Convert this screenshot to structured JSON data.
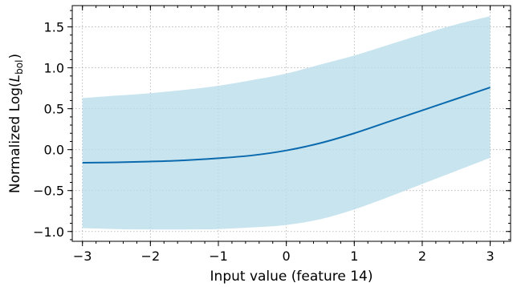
{
  "chart_data": {
    "type": "line",
    "xlabel": "Input value (feature 14)",
    "ylabel_prefix": "Normalized Log(",
    "ylabel_symbol": "L",
    "ylabel_subscript": "bol",
    "ylabel_suffix": ")",
    "xlim": [
      -3.15,
      3.3
    ],
    "ylim": [
      -1.12,
      1.76
    ],
    "x_ticks": [
      -3,
      -2,
      -1,
      0,
      1,
      2,
      3
    ],
    "x_tick_labels": [
      "−3",
      "−2",
      "−1",
      "0",
      "1",
      "2",
      "3"
    ],
    "y_ticks": [
      -1.0,
      -0.5,
      0.0,
      0.5,
      1.0,
      1.5
    ],
    "y_tick_labels": [
      "−1.0",
      "−0.5",
      "0.0",
      "0.5",
      "1.0",
      "1.5"
    ],
    "grid": true,
    "colors": {
      "line": "#0a6aad",
      "band": "#b9dceb"
    },
    "series": [
      {
        "x": [
          -3.0,
          -2.5,
          -2.0,
          -1.5,
          -1.0,
          -0.5,
          0.0,
          0.5,
          1.0,
          1.5,
          2.0,
          2.5,
          3.0
        ],
        "mean": [
          -0.16,
          -0.155,
          -0.145,
          -0.13,
          -0.105,
          -0.07,
          -0.01,
          0.08,
          0.2,
          0.34,
          0.48,
          0.62,
          0.76
        ],
        "lower": [
          -0.96,
          -0.97,
          -0.975,
          -0.975,
          -0.97,
          -0.95,
          -0.92,
          -0.85,
          -0.73,
          -0.58,
          -0.42,
          -0.26,
          -0.1
        ],
        "upper": [
          0.63,
          0.66,
          0.69,
          0.73,
          0.78,
          0.85,
          0.93,
          1.04,
          1.15,
          1.28,
          1.41,
          1.53,
          1.63
        ]
      }
    ]
  }
}
